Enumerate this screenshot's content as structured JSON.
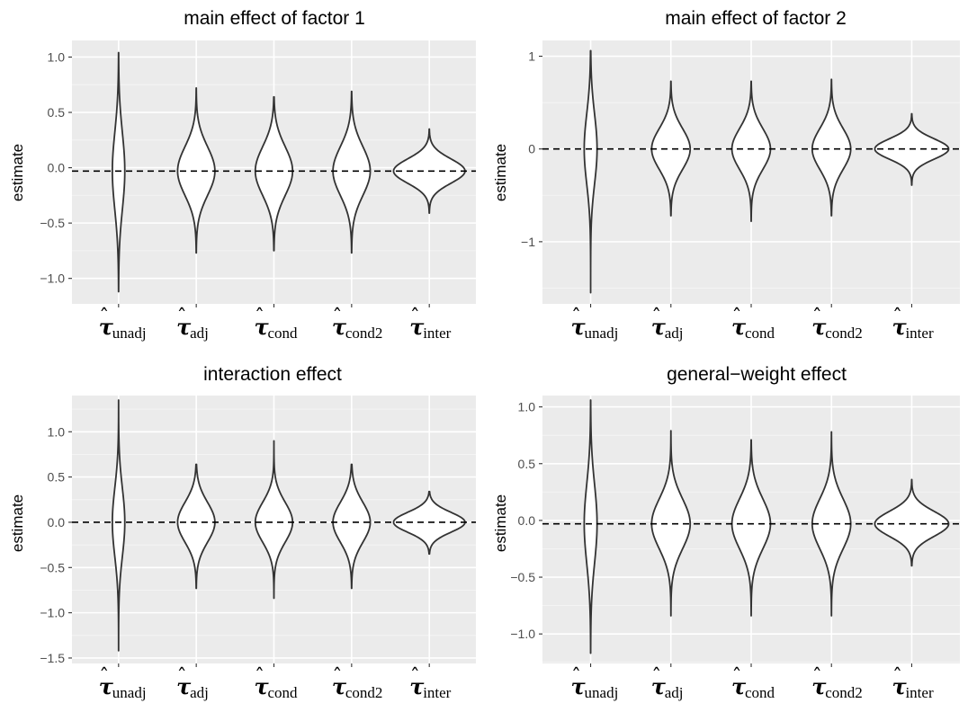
{
  "figure": {
    "colors": {
      "panel_bg": "#ebebeb",
      "grid_major": "#ffffff",
      "grid_minor": "#f5f5f5",
      "violin_fill": "#ffffff",
      "violin_stroke": "#333333",
      "reference_line": "#000000"
    }
  },
  "chart_data": [
    {
      "type": "violin",
      "title": "main effect of factor 1",
      "ylabel": "estimate",
      "xlabel": "",
      "ylim": [
        -1.23,
        1.15
      ],
      "yticks": [
        -1.0,
        -0.5,
        0.0,
        0.5,
        1.0
      ],
      "ytick_labels": [
        "−1.0",
        "−0.5",
        "0.0",
        "0.5",
        "1.0"
      ],
      "reference_line": -0.03,
      "categories": [
        {
          "hat": "ˆ",
          "symbol": "τ",
          "sub": "unadj"
        },
        {
          "hat": "ˆ",
          "symbol": "τ",
          "sub": "adj"
        },
        {
          "hat": "ˆ",
          "symbol": "τ",
          "sub": "cond"
        },
        {
          "hat": "ˆ",
          "symbol": "τ",
          "sub": "cond2"
        },
        {
          "hat": "ˆ",
          "symbol": "τ",
          "sub": "inter"
        }
      ],
      "violins": [
        {
          "center": -0.03,
          "sd": 0.35,
          "min": -1.12,
          "max": 1.04,
          "half_width": 0.08
        },
        {
          "center": -0.03,
          "sd": 0.22,
          "min": -0.77,
          "max": 0.72,
          "half_width": 0.24
        },
        {
          "center": -0.03,
          "sd": 0.22,
          "min": -0.75,
          "max": 0.64,
          "half_width": 0.24
        },
        {
          "center": -0.03,
          "sd": 0.22,
          "min": -0.77,
          "max": 0.69,
          "half_width": 0.24
        },
        {
          "center": -0.03,
          "sd": 0.11,
          "min": -0.41,
          "max": 0.35,
          "half_width": 0.46
        }
      ]
    },
    {
      "type": "violin",
      "title": "main effect of factor 2",
      "ylabel": "estimate",
      "xlabel": "",
      "ylim": [
        -1.67,
        1.17
      ],
      "yticks": [
        -1,
        0,
        1
      ],
      "ytick_labels": [
        "−1",
        "0",
        "1"
      ],
      "reference_line": 0.0,
      "categories": [
        {
          "hat": "ˆ",
          "symbol": "τ",
          "sub": "unadj"
        },
        {
          "hat": "ˆ",
          "symbol": "τ",
          "sub": "adj"
        },
        {
          "hat": "ˆ",
          "symbol": "τ",
          "sub": "cond"
        },
        {
          "hat": "ˆ",
          "symbol": "τ",
          "sub": "cond2"
        },
        {
          "hat": "ˆ",
          "symbol": "τ",
          "sub": "inter"
        }
      ],
      "violins": [
        {
          "center": 0.0,
          "sd": 0.38,
          "min": -1.55,
          "max": 1.06,
          "half_width": 0.08
        },
        {
          "center": 0.0,
          "sd": 0.22,
          "min": -0.72,
          "max": 0.73,
          "half_width": 0.24
        },
        {
          "center": 0.0,
          "sd": 0.22,
          "min": -0.78,
          "max": 0.73,
          "half_width": 0.24
        },
        {
          "center": 0.0,
          "sd": 0.22,
          "min": -0.72,
          "max": 0.75,
          "half_width": 0.24
        },
        {
          "center": 0.0,
          "sd": 0.11,
          "min": -0.39,
          "max": 0.38,
          "half_width": 0.46
        }
      ]
    },
    {
      "type": "violin",
      "title": "interaction effect",
      "ylabel": "estimate",
      "xlabel": "",
      "ylim": [
        -1.56,
        1.4
      ],
      "yticks": [
        -1.5,
        -1.0,
        -0.5,
        0.0,
        0.5,
        1.0
      ],
      "ytick_labels": [
        "−1.5",
        "−1.0",
        "−0.5",
        "0.0",
        "0.5",
        "1.0"
      ],
      "reference_line": 0.0,
      "categories": [
        {
          "hat": "ˆ",
          "symbol": "τ",
          "sub": "unadj"
        },
        {
          "hat": "ˆ",
          "symbol": "τ",
          "sub": "adj"
        },
        {
          "hat": "ˆ",
          "symbol": "τ",
          "sub": "cond"
        },
        {
          "hat": "ˆ",
          "symbol": "τ",
          "sub": "cond2"
        },
        {
          "hat": "ˆ",
          "symbol": "τ",
          "sub": "inter"
        }
      ],
      "violins": [
        {
          "center": 0.0,
          "sd": 0.38,
          "min": -1.42,
          "max": 1.35,
          "half_width": 0.08
        },
        {
          "center": 0.0,
          "sd": 0.22,
          "min": -0.73,
          "max": 0.64,
          "half_width": 0.24
        },
        {
          "center": 0.0,
          "sd": 0.22,
          "min": -0.84,
          "max": 0.9,
          "half_width": 0.24
        },
        {
          "center": 0.0,
          "sd": 0.22,
          "min": -0.73,
          "max": 0.64,
          "half_width": 0.24
        },
        {
          "center": 0.0,
          "sd": 0.11,
          "min": -0.35,
          "max": 0.34,
          "half_width": 0.46
        }
      ]
    },
    {
      "type": "violin",
      "title": "general−weight effect",
      "ylabel": "estimate",
      "xlabel": "",
      "ylim": [
        -1.26,
        1.1
      ],
      "yticks": [
        -1.0,
        -0.5,
        0.0,
        0.5,
        1.0
      ],
      "ytick_labels": [
        "−1.0",
        "−0.5",
        "0.0",
        "0.5",
        "1.0"
      ],
      "reference_line": -0.03,
      "categories": [
        {
          "hat": "ˆ",
          "symbol": "τ",
          "sub": "unadj"
        },
        {
          "hat": "ˆ",
          "symbol": "τ",
          "sub": "adj"
        },
        {
          "hat": "ˆ",
          "symbol": "τ",
          "sub": "cond"
        },
        {
          "hat": "ˆ",
          "symbol": "τ",
          "sub": "cond2"
        },
        {
          "hat": "ˆ",
          "symbol": "τ",
          "sub": "inter"
        }
      ],
      "violins": [
        {
          "center": -0.03,
          "sd": 0.35,
          "min": -1.17,
          "max": 1.06,
          "half_width": 0.08
        },
        {
          "center": -0.03,
          "sd": 0.22,
          "min": -0.84,
          "max": 0.79,
          "half_width": 0.24
        },
        {
          "center": -0.03,
          "sd": 0.22,
          "min": -0.84,
          "max": 0.71,
          "half_width": 0.24
        },
        {
          "center": -0.03,
          "sd": 0.22,
          "min": -0.84,
          "max": 0.78,
          "half_width": 0.24
        },
        {
          "center": -0.03,
          "sd": 0.11,
          "min": -0.4,
          "max": 0.36,
          "half_width": 0.46
        }
      ]
    }
  ]
}
